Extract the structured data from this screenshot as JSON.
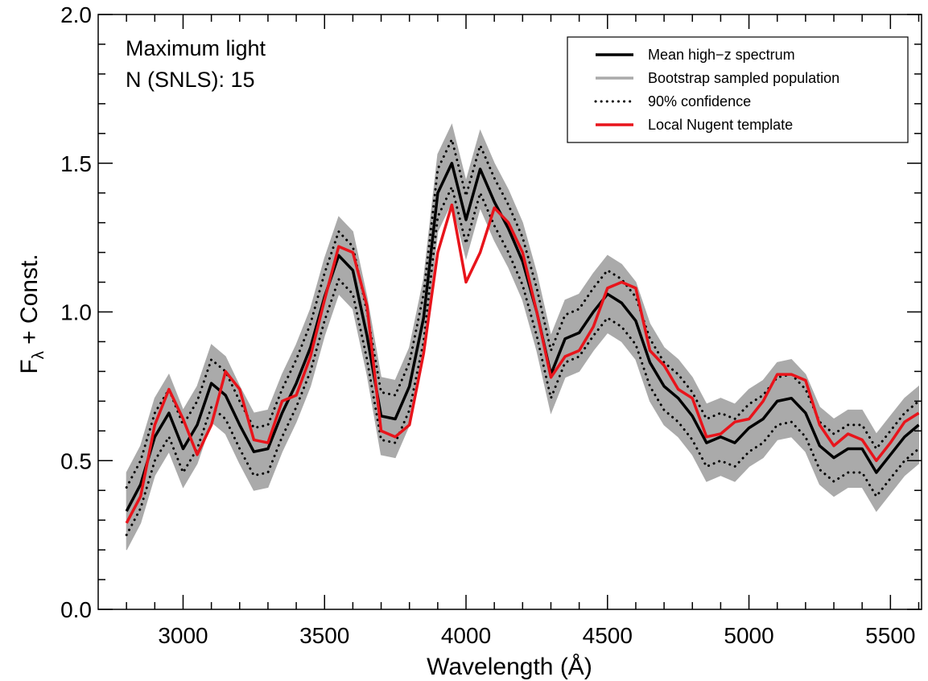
{
  "chart_data": {
    "type": "line",
    "xlabel": "Wavelength (Å)",
    "ylabel_parts": [
      "F",
      "λ",
      " + Const."
    ],
    "annotations": [
      "Maximum light",
      "N (SNLS): 15"
    ],
    "legend": "upper right",
    "xlim": [
      2700,
      5610
    ],
    "ylim": [
      0,
      2
    ],
    "xticks": [
      3000,
      3500,
      4000,
      4500,
      5000,
      5500
    ],
    "xminorticks": [
      2800,
      2900,
      3100,
      3200,
      3300,
      3400,
      3600,
      3700,
      3800,
      3900,
      4100,
      4200,
      4300,
      4400,
      4600,
      4700,
      4800,
      4900,
      5100,
      5200,
      5300,
      5400,
      5600
    ],
    "yticks": [
      {
        "value": 0,
        "label": "0.0"
      },
      0.5,
      {
        "value": 1,
        "label": "1.0"
      },
      1.5,
      {
        "value": 2,
        "label": "2.0"
      }
    ],
    "yminorticks": [
      0.1,
      0.2,
      0.3,
      0.4,
      0.6,
      0.7,
      0.8,
      0.9,
      1.1,
      1.2,
      1.3,
      1.4,
      1.6,
      1.7,
      1.8,
      1.9
    ],
    "x": [
      2800,
      2850,
      2900,
      2950,
      3000,
      3050,
      3100,
      3150,
      3200,
      3250,
      3300,
      3350,
      3400,
      3450,
      3500,
      3550,
      3600,
      3650,
      3700,
      3750,
      3800,
      3850,
      3900,
      3950,
      4000,
      4050,
      4100,
      4150,
      4200,
      4250,
      4300,
      4350,
      4400,
      4450,
      4500,
      4550,
      4600,
      4650,
      4700,
      4750,
      4800,
      4850,
      4900,
      4950,
      5000,
      5050,
      5100,
      5150,
      5200,
      5250,
      5300,
      5350,
      5400,
      5450,
      5500,
      5550,
      5600
    ],
    "series": [
      {
        "name": "Mean high−z spectrum",
        "color": "#000000",
        "style": "solid",
        "values": [
          0.33,
          0.42,
          0.58,
          0.66,
          0.54,
          0.62,
          0.76,
          0.72,
          0.62,
          0.53,
          0.54,
          0.66,
          0.76,
          0.88,
          1.05,
          1.19,
          1.14,
          0.92,
          0.65,
          0.64,
          0.75,
          0.98,
          1.4,
          1.5,
          1.31,
          1.48,
          1.37,
          1.28,
          1.17,
          1.0,
          0.79,
          0.91,
          0.93,
          1.0,
          1.06,
          1.03,
          0.97,
          0.83,
          0.75,
          0.71,
          0.65,
          0.56,
          0.58,
          0.56,
          0.61,
          0.64,
          0.7,
          0.71,
          0.66,
          0.55,
          0.51,
          0.54,
          0.54,
          0.46,
          0.52,
          0.58,
          0.62
        ]
      },
      {
        "name": "Bootstrap sampled population",
        "color": "#aaaaaa",
        "style": "band",
        "values": [
          0.46,
          0.55,
          0.71,
          0.79,
          0.67,
          0.75,
          0.89,
          0.85,
          0.75,
          0.66,
          0.67,
          0.79,
          0.89,
          1.01,
          1.18,
          1.32,
          1.27,
          1.05,
          0.78,
          0.77,
          0.88,
          1.11,
          1.53,
          1.63,
          1.44,
          1.61,
          1.5,
          1.41,
          1.3,
          1.13,
          0.92,
          1.04,
          1.06,
          1.13,
          1.19,
          1.16,
          1.1,
          0.96,
          0.88,
          0.84,
          0.78,
          0.69,
          0.71,
          0.69,
          0.74,
          0.77,
          0.83,
          0.84,
          0.79,
          0.68,
          0.64,
          0.67,
          0.67,
          0.59,
          0.65,
          0.71,
          0.75
        ],
        "values_low": [
          0.2,
          0.29,
          0.45,
          0.53,
          0.41,
          0.49,
          0.63,
          0.59,
          0.49,
          0.4,
          0.41,
          0.53,
          0.63,
          0.75,
          0.92,
          1.06,
          1.01,
          0.79,
          0.52,
          0.51,
          0.62,
          0.85,
          1.27,
          1.37,
          1.18,
          1.35,
          1.24,
          1.15,
          1.04,
          0.87,
          0.66,
          0.78,
          0.8,
          0.87,
          0.93,
          0.9,
          0.84,
          0.7,
          0.62,
          0.58,
          0.52,
          0.43,
          0.45,
          0.43,
          0.48,
          0.51,
          0.57,
          0.58,
          0.53,
          0.42,
          0.38,
          0.41,
          0.41,
          0.33,
          0.39,
          0.45,
          0.49
        ]
      },
      {
        "name": "90% confidence",
        "color": "#000000",
        "style": "dotted",
        "values": [
          0.41,
          0.5,
          0.66,
          0.74,
          0.62,
          0.7,
          0.84,
          0.8,
          0.7,
          0.61,
          0.62,
          0.74,
          0.84,
          0.96,
          1.13,
          1.27,
          1.22,
          1.0,
          0.73,
          0.72,
          0.83,
          1.06,
          1.48,
          1.58,
          1.39,
          1.56,
          1.45,
          1.36,
          1.25,
          1.08,
          0.87,
          0.99,
          1.01,
          1.08,
          1.14,
          1.11,
          1.05,
          0.91,
          0.83,
          0.79,
          0.73,
          0.64,
          0.66,
          0.64,
          0.69,
          0.72,
          0.78,
          0.79,
          0.74,
          0.63,
          0.59,
          0.62,
          0.62,
          0.54,
          0.6,
          0.66,
          0.7
        ],
        "values_low": [
          0.25,
          0.34,
          0.5,
          0.58,
          0.46,
          0.54,
          0.68,
          0.64,
          0.54,
          0.45,
          0.46,
          0.58,
          0.68,
          0.8,
          0.97,
          1.11,
          1.06,
          0.84,
          0.57,
          0.56,
          0.67,
          0.9,
          1.32,
          1.42,
          1.23,
          1.4,
          1.29,
          1.2,
          1.09,
          0.92,
          0.71,
          0.83,
          0.85,
          0.92,
          0.98,
          0.95,
          0.89,
          0.75,
          0.67,
          0.63,
          0.57,
          0.48,
          0.5,
          0.48,
          0.53,
          0.56,
          0.62,
          0.63,
          0.58,
          0.47,
          0.43,
          0.46,
          0.46,
          0.38,
          0.44,
          0.5,
          0.54
        ]
      },
      {
        "name": "Local Nugent template",
        "color": "#e8141b",
        "style": "solid",
        "values": [
          0.29,
          0.38,
          0.62,
          0.74,
          0.64,
          0.52,
          0.62,
          0.8,
          0.74,
          0.57,
          0.56,
          0.7,
          0.72,
          0.85,
          1.04,
          1.22,
          1.2,
          1.02,
          0.6,
          0.58,
          0.62,
          0.86,
          1.2,
          1.36,
          1.1,
          1.2,
          1.35,
          1.3,
          1.2,
          1.0,
          0.78,
          0.85,
          0.87,
          0.95,
          1.08,
          1.1,
          1.08,
          0.87,
          0.82,
          0.74,
          0.71,
          0.58,
          0.59,
          0.63,
          0.64,
          0.7,
          0.79,
          0.79,
          0.77,
          0.62,
          0.55,
          0.59,
          0.57,
          0.5,
          0.56,
          0.63,
          0.66
        ]
      }
    ]
  }
}
